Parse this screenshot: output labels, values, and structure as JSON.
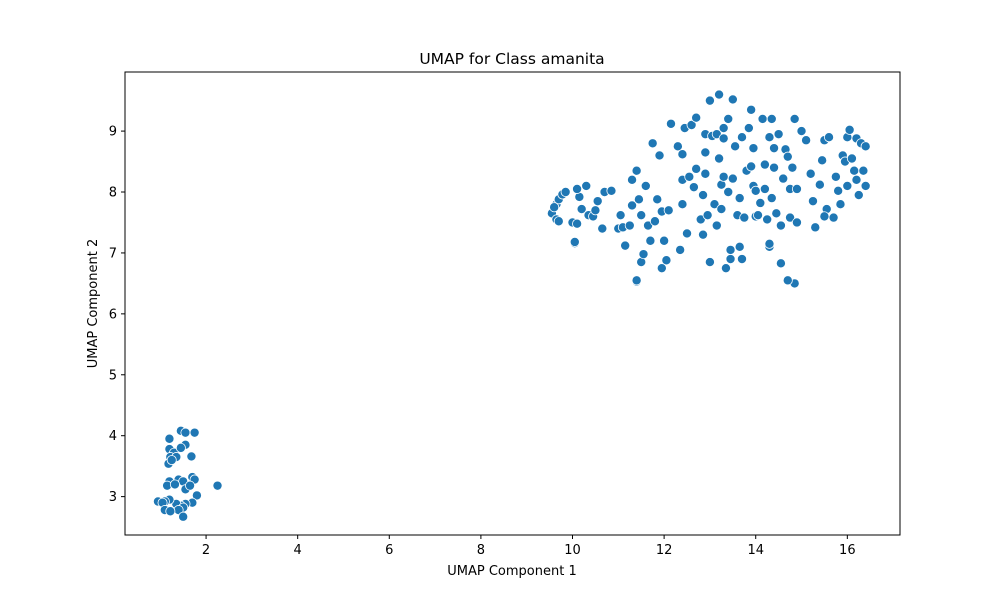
{
  "chart_data": {
    "type": "scatter",
    "title": "UMAP for Class amanita",
    "xlabel": "UMAP Component 1",
    "ylabel": "UMAP Component 2",
    "xlim": [
      0.23,
      17.15
    ],
    "ylim": [
      2.37,
      9.97
    ],
    "xticks": [
      2,
      4,
      6,
      8,
      10,
      12,
      14,
      16
    ],
    "yticks": [
      3,
      4,
      5,
      6,
      7,
      8,
      9
    ],
    "grid": false,
    "legend": "none",
    "marker_color": "#1f77b4",
    "marker_edge_color": "#ffffff",
    "series": [
      {
        "points": [
          [
            1.2,
            3.95
          ],
          [
            1.45,
            4.08
          ],
          [
            1.55,
            4.05
          ],
          [
            1.75,
            4.05
          ],
          [
            1.2,
            3.78
          ],
          [
            1.3,
            3.72
          ],
          [
            1.55,
            3.85
          ],
          [
            1.45,
            3.8
          ],
          [
            1.22,
            3.65
          ],
          [
            1.35,
            3.65
          ],
          [
            1.68,
            3.66
          ],
          [
            1.18,
            3.54
          ],
          [
            1.25,
            3.6
          ],
          [
            1.7,
            3.32
          ],
          [
            1.75,
            3.28
          ],
          [
            1.4,
            3.28
          ],
          [
            1.5,
            3.25
          ],
          [
            1.2,
            3.25
          ],
          [
            1.15,
            3.18
          ],
          [
            1.32,
            3.2
          ],
          [
            1.55,
            3.12
          ],
          [
            1.65,
            3.18
          ],
          [
            2.25,
            3.18
          ],
          [
            1.8,
            3.02
          ],
          [
            1.7,
            2.9
          ],
          [
            1.55,
            2.88
          ],
          [
            1.45,
            2.85
          ],
          [
            1.35,
            2.88
          ],
          [
            1.2,
            2.95
          ],
          [
            1.1,
            2.92
          ],
          [
            0.95,
            2.92
          ],
          [
            1.05,
            2.9
          ],
          [
            1.5,
            2.82
          ],
          [
            1.4,
            2.78
          ],
          [
            1.1,
            2.78
          ],
          [
            1.22,
            2.76
          ],
          [
            1.5,
            2.67
          ],
          [
            9.55,
            7.65
          ],
          [
            9.65,
            7.8
          ],
          [
            9.7,
            7.88
          ],
          [
            9.78,
            7.96
          ],
          [
            9.85,
            8.0
          ],
          [
            9.6,
            7.75
          ],
          [
            9.65,
            7.55
          ],
          [
            9.7,
            7.52
          ],
          [
            10.0,
            7.5
          ],
          [
            10.1,
            7.48
          ],
          [
            10.05,
            7.16
          ],
          [
            10.05,
            7.18
          ],
          [
            10.15,
            7.92
          ],
          [
            10.1,
            8.05
          ],
          [
            10.3,
            8.1
          ],
          [
            10.2,
            7.72
          ],
          [
            10.35,
            7.62
          ],
          [
            10.45,
            7.6
          ],
          [
            10.5,
            7.7
          ],
          [
            10.55,
            7.85
          ],
          [
            10.7,
            8.0
          ],
          [
            10.65,
            7.4
          ],
          [
            10.85,
            8.02
          ],
          [
            11.0,
            7.4
          ],
          [
            11.05,
            7.62
          ],
          [
            11.1,
            7.42
          ],
          [
            11.15,
            7.12
          ],
          [
            11.25,
            7.45
          ],
          [
            11.3,
            7.78
          ],
          [
            11.3,
            8.2
          ],
          [
            11.4,
            8.35
          ],
          [
            11.4,
            6.53
          ],
          [
            11.45,
            7.88
          ],
          [
            11.5,
            6.85
          ],
          [
            11.5,
            7.62
          ],
          [
            11.55,
            6.98
          ],
          [
            11.6,
            8.1
          ],
          [
            11.65,
            7.45
          ],
          [
            11.7,
            7.2
          ],
          [
            11.75,
            8.8
          ],
          [
            11.8,
            7.52
          ],
          [
            11.85,
            7.88
          ],
          [
            11.9,
            8.6
          ],
          [
            11.95,
            7.68
          ],
          [
            12.0,
            7.2
          ],
          [
            11.95,
            6.75
          ],
          [
            12.05,
            6.88
          ],
          [
            12.1,
            7.7
          ],
          [
            12.15,
            9.12
          ],
          [
            12.3,
            8.75
          ],
          [
            12.35,
            7.05
          ],
          [
            12.4,
            8.62
          ],
          [
            12.4,
            8.2
          ],
          [
            12.4,
            7.8
          ],
          [
            12.45,
            9.05
          ],
          [
            12.5,
            7.32
          ],
          [
            12.55,
            8.25
          ],
          [
            12.6,
            9.1
          ],
          [
            12.65,
            8.08
          ],
          [
            12.7,
            8.38
          ],
          [
            12.7,
            9.22
          ],
          [
            12.8,
            7.55
          ],
          [
            12.85,
            7.3
          ],
          [
            12.85,
            7.95
          ],
          [
            12.9,
            8.65
          ],
          [
            12.9,
            8.95
          ],
          [
            12.95,
            7.62
          ],
          [
            13.0,
            6.85
          ],
          [
            13.0,
            9.5
          ],
          [
            13.05,
            8.92
          ],
          [
            13.1,
            7.8
          ],
          [
            13.15,
            8.95
          ],
          [
            13.15,
            7.45
          ],
          [
            13.2,
            8.55
          ],
          [
            13.2,
            9.6
          ],
          [
            13.25,
            8.12
          ],
          [
            13.3,
            8.25
          ],
          [
            13.3,
            8.88
          ],
          [
            13.3,
            9.05
          ],
          [
            13.35,
            6.75
          ],
          [
            13.4,
            9.2
          ],
          [
            13.4,
            8.0
          ],
          [
            13.45,
            7.05
          ],
          [
            13.45,
            6.9
          ],
          [
            13.5,
            9.52
          ],
          [
            13.5,
            8.22
          ],
          [
            13.55,
            8.75
          ],
          [
            13.6,
            7.62
          ],
          [
            13.65,
            7.1
          ],
          [
            13.65,
            7.9
          ],
          [
            13.7,
            6.9
          ],
          [
            13.7,
            8.9
          ],
          [
            13.75,
            7.58
          ],
          [
            13.8,
            8.35
          ],
          [
            13.85,
            9.05
          ],
          [
            13.9,
            9.35
          ],
          [
            13.9,
            8.42
          ],
          [
            13.95,
            8.1
          ],
          [
            13.95,
            8.72
          ],
          [
            14.0,
            7.6
          ],
          [
            14.0,
            8.02
          ],
          [
            14.05,
            7.62
          ],
          [
            14.1,
            7.82
          ],
          [
            14.15,
            9.2
          ],
          [
            14.2,
            8.45
          ],
          [
            14.2,
            8.05
          ],
          [
            14.25,
            7.55
          ],
          [
            14.3,
            7.1
          ],
          [
            14.3,
            8.9
          ],
          [
            14.35,
            9.2
          ],
          [
            14.35,
            7.9
          ],
          [
            14.4,
            8.4
          ],
          [
            14.4,
            8.72
          ],
          [
            14.45,
            7.65
          ],
          [
            14.5,
            8.95
          ],
          [
            14.55,
            7.45
          ],
          [
            14.55,
            6.83
          ],
          [
            14.6,
            8.22
          ],
          [
            14.65,
            8.7
          ],
          [
            14.7,
            8.58
          ],
          [
            14.75,
            8.05
          ],
          [
            14.75,
            7.58
          ],
          [
            14.8,
            8.4
          ],
          [
            14.85,
            9.2
          ],
          [
            14.85,
            6.5
          ],
          [
            14.9,
            8.05
          ],
          [
            14.9,
            7.5
          ],
          [
            15.0,
            9.0
          ],
          [
            15.1,
            8.85
          ],
          [
            15.2,
            8.3
          ],
          [
            15.25,
            7.85
          ],
          [
            15.3,
            7.42
          ],
          [
            15.4,
            8.12
          ],
          [
            15.45,
            8.52
          ],
          [
            15.5,
            8.85
          ],
          [
            15.55,
            7.72
          ],
          [
            15.6,
            8.9
          ],
          [
            15.7,
            7.58
          ],
          [
            15.75,
            8.25
          ],
          [
            15.8,
            8.02
          ],
          [
            15.85,
            7.8
          ],
          [
            15.9,
            8.6
          ],
          [
            15.95,
            8.5
          ],
          [
            16.0,
            8.1
          ],
          [
            16.0,
            8.9
          ],
          [
            16.05,
            9.02
          ],
          [
            16.1,
            8.55
          ],
          [
            16.15,
            8.35
          ],
          [
            16.2,
            8.2
          ],
          [
            16.2,
            8.88
          ],
          [
            16.25,
            7.95
          ],
          [
            16.3,
            8.8
          ],
          [
            16.35,
            8.35
          ],
          [
            16.4,
            8.1
          ],
          [
            16.4,
            8.75
          ],
          [
            15.5,
            7.6
          ],
          [
            14.7,
            6.55
          ],
          [
            11.4,
            6.55
          ],
          [
            14.3,
            7.15
          ],
          [
            13.25,
            7.72
          ],
          [
            12.9,
            8.3
          ]
        ]
      }
    ]
  }
}
